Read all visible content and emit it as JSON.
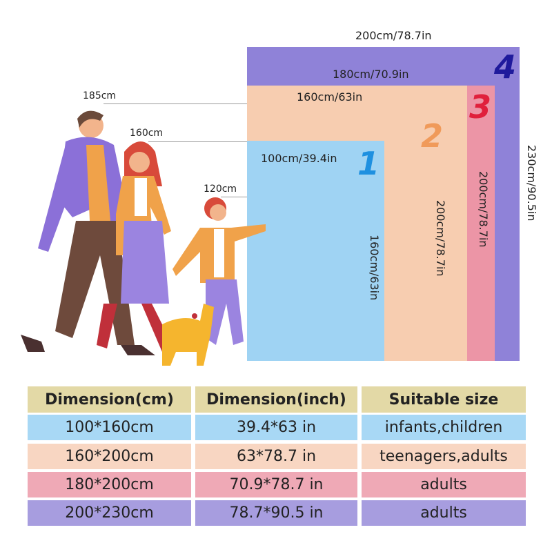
{
  "diagram": {
    "sizes": [
      {
        "number": "1",
        "width_label": "100cm/39.4in",
        "height_label": "160cm/63in",
        "color": "#9fd3f3",
        "number_color": "#1e90e0"
      },
      {
        "number": "2",
        "width_label": "160cm/63in",
        "height_label": "200cm/78.7in",
        "color": "#f7cdb0",
        "number_color": "#f09a5a"
      },
      {
        "number": "3",
        "width_label": "180cm/70.9in",
        "height_label": "200cm/78.7in",
        "color": "#ec95a6",
        "number_color": "#e0203c"
      },
      {
        "number": "4",
        "width_label": "200cm/78.7in",
        "height_label": "230cm/90.5in",
        "color": "#8f82d8",
        "number_color": "#1f1a9c"
      }
    ],
    "heights": [
      "185cm",
      "160cm",
      "120cm"
    ]
  },
  "table": {
    "headers": [
      "Dimension(cm)",
      "Dimension(inch)",
      "Suitable size"
    ],
    "header_color": "#e3d9a6",
    "rows": [
      {
        "cells": [
          "100*160cm",
          "39.4*63 in",
          "infants,children"
        ],
        "color": "#a8d8f5"
      },
      {
        "cells": [
          "160*200cm",
          "63*78.7 in",
          "teenagers,adults"
        ],
        "color": "#f8d6c2"
      },
      {
        "cells": [
          "180*200cm",
          "70.9*78.7 in",
          "adults"
        ],
        "color": "#efa9b6"
      },
      {
        "cells": [
          "200*230cm",
          "78.7*90.5 in",
          "adults"
        ],
        "color": "#a79ddf"
      }
    ]
  }
}
